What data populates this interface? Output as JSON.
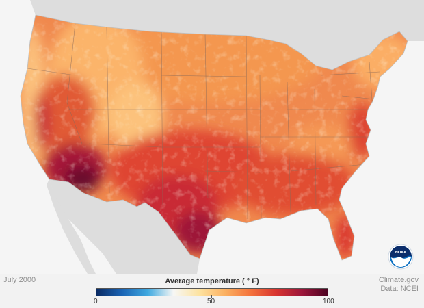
{
  "caption": {
    "period": "July 2000"
  },
  "credits": {
    "source": "Climate.gov",
    "data": "Data: NCEI"
  },
  "legend": {
    "title": "Average temperature ( ° F)",
    "ticks": [
      "0",
      "50",
      "100"
    ],
    "min": 0,
    "max": 100,
    "colors": [
      "#0b2b63",
      "#1a64b5",
      "#3fa9e0",
      "#f7f7f5",
      "#fde3a1",
      "#fbb161",
      "#f4733c",
      "#d8342f",
      "#9c163b",
      "#4d0321"
    ]
  },
  "logo": {
    "icon": "noaa-logo-icon",
    "text": "NOAA"
  },
  "map": {
    "colors": {
      "water": "#f5f5f5",
      "neighbor_land": "#dddddd",
      "base_land": "#f0894e",
      "warm_west": "#fcb66b",
      "hot_south": "#d9352e",
      "hottest": "#6a0a2e",
      "borders": "#8a6a5a"
    }
  }
}
